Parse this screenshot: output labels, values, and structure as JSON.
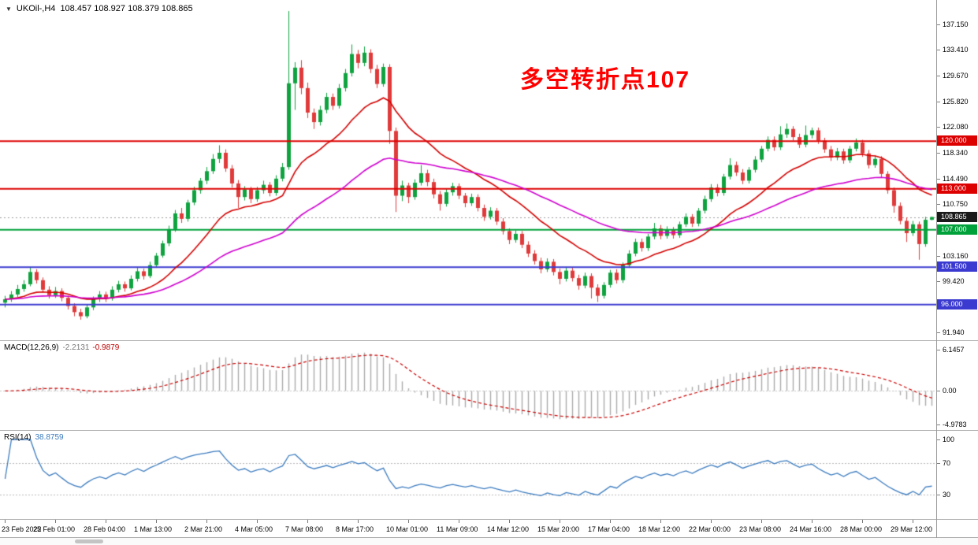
{
  "header": {
    "triangle_icon": "▼",
    "symbol": "UKOil-,H4",
    "ohlc_text": "108.457 108.927 108.379 108.865"
  },
  "annotation": {
    "text": "多空转折点107",
    "color": "#ff0000"
  },
  "colors": {
    "candle_up": "#0fa33f",
    "candle_down": "#e03a3a",
    "macd_hist": "#aaaaaa",
    "macd_signal": "#cc0000",
    "rsi_line": "#3b7bbf",
    "current_badge": "#1a1a1a"
  },
  "chart_data": {
    "type": "candlestick",
    "title": "UKOil-,H4",
    "price_at_top": 140.73,
    "price_at_bottom": 90.78,
    "current_price": 108.865,
    "price_axis_labels": [
      "137.150",
      "133.410",
      "129.670",
      "125.820",
      "122.080",
      "118.340",
      "114.490",
      "110.750",
      "103.160",
      "99.420",
      "91.940"
    ],
    "x_label_every": 8,
    "x_labels": [
      "23 Feb 2022",
      "25 Feb 01:00",
      "28 Feb 04:00",
      "1 Mar 13:00",
      "2 Mar 21:00",
      "4 Mar 05:00",
      "7 Mar 08:00",
      "8 Mar 17:00",
      "10 Mar 01:00",
      "11 Mar 09:00",
      "14 Mar 12:00",
      "15 Mar 20:00",
      "17 Mar 04:00",
      "18 Mar 12:00",
      "22 Mar 00:00",
      "23 Mar 08:00",
      "24 Mar 16:00",
      "28 Mar 00:00",
      "29 Mar 12:00"
    ],
    "levels": [
      {
        "price": 120.0,
        "label": "120.000",
        "color": "#dd0000"
      },
      {
        "price": 113.0,
        "label": "113.000",
        "color": "#dd0000"
      },
      {
        "price": 107.0,
        "label": "107.000",
        "color": "#00a13a"
      },
      {
        "price": 101.5,
        "label": "101.500",
        "color": "#3a3ad0"
      },
      {
        "price": 96.0,
        "label": "96.000",
        "color": "#3a3ad0"
      }
    ],
    "moving_averages": [
      {
        "name": "ma-fast-red",
        "period": 18,
        "color": "#d40000"
      },
      {
        "name": "ma-slow-magenta",
        "period": 48,
        "color": "#cf00cf"
      }
    ],
    "macd": {
      "label": "MACD(12,26,9)",
      "value_main": "-2.2131",
      "value_signal": "-0.9879",
      "fast": 12,
      "slow": 26,
      "signal_period": 9,
      "vmax": 7.4,
      "vmin": -5.8,
      "axis_labels": [
        "6.1457",
        "0.00",
        "-4.9783"
      ]
    },
    "rsi": {
      "label": "RSI(14)",
      "value": "38.8759",
      "period": 14,
      "levels": [
        70,
        30
      ],
      "axis_labels": [
        "100",
        "70",
        "30"
      ]
    },
    "candles": [
      [
        96.3,
        97.3,
        95.6,
        96.8
      ],
      [
        96.8,
        98.0,
        96.4,
        97.5
      ],
      [
        97.5,
        98.9,
        97.1,
        98.3
      ],
      [
        98.3,
        99.6,
        97.9,
        99.0
      ],
      [
        99.0,
        101.5,
        98.7,
        100.8
      ],
      [
        100.8,
        101.2,
        99.1,
        99.6
      ],
      [
        99.6,
        100.0,
        97.8,
        98.2
      ],
      [
        98.2,
        98.7,
        96.9,
        97.4
      ],
      [
        97.4,
        98.6,
        97.0,
        98.0
      ],
      [
        98.0,
        98.4,
        96.5,
        97.0
      ],
      [
        97.0,
        97.3,
        95.3,
        95.8
      ],
      [
        95.8,
        96.2,
        94.3,
        94.9
      ],
      [
        94.9,
        95.4,
        93.8,
        94.3
      ],
      [
        94.3,
        96.0,
        94.0,
        95.6
      ],
      [
        95.6,
        97.2,
        95.2,
        96.8
      ],
      [
        96.8,
        98.0,
        96.4,
        97.5
      ],
      [
        97.5,
        97.9,
        96.4,
        96.9
      ],
      [
        96.9,
        98.7,
        96.6,
        98.2
      ],
      [
        98.2,
        99.5,
        97.8,
        99.0
      ],
      [
        99.0,
        99.4,
        97.9,
        98.4
      ],
      [
        98.4,
        100.3,
        98.1,
        99.8
      ],
      [
        99.8,
        101.4,
        99.4,
        100.9
      ],
      [
        100.9,
        101.3,
        99.7,
        100.2
      ],
      [
        100.2,
        102.3,
        99.9,
        101.8
      ],
      [
        101.8,
        103.6,
        101.4,
        103.2
      ],
      [
        103.2,
        105.4,
        102.9,
        105.0
      ],
      [
        105.0,
        107.6,
        104.6,
        107.1
      ],
      [
        107.1,
        109.9,
        106.7,
        109.4
      ],
      [
        109.4,
        110.2,
        108.0,
        108.6
      ],
      [
        108.6,
        111.4,
        108.2,
        111.0
      ],
      [
        111.0,
        113.3,
        110.6,
        112.8
      ],
      [
        112.8,
        114.6,
        112.3,
        114.2
      ],
      [
        114.2,
        116.2,
        113.7,
        115.6
      ],
      [
        115.6,
        118.1,
        115.2,
        117.4
      ],
      [
        117.4,
        119.4,
        116.8,
        118.3
      ],
      [
        118.3,
        118.8,
        115.5,
        116.0
      ],
      [
        116.0,
        116.5,
        113.2,
        113.8
      ],
      [
        113.8,
        114.3,
        110.2,
        111.8
      ],
      [
        111.8,
        113.4,
        111.3,
        112.9
      ],
      [
        112.9,
        113.3,
        110.9,
        111.5
      ],
      [
        111.5,
        113.3,
        111.1,
        112.8
      ],
      [
        112.8,
        114.2,
        112.3,
        113.6
      ],
      [
        113.6,
        114.0,
        111.9,
        112.4
      ],
      [
        112.4,
        115.0,
        112.0,
        114.5
      ],
      [
        114.5,
        116.8,
        114.1,
        116.2
      ],
      [
        116.2,
        139.1,
        115.8,
        128.5
      ],
      [
        128.5,
        131.6,
        124.6,
        130.8
      ],
      [
        130.8,
        131.9,
        126.9,
        127.8
      ],
      [
        127.8,
        128.6,
        123.4,
        124.2
      ],
      [
        124.2,
        124.8,
        121.8,
        122.8
      ],
      [
        122.8,
        125.2,
        122.3,
        124.6
      ],
      [
        124.6,
        127.1,
        124.1,
        126.5
      ],
      [
        126.5,
        127.0,
        124.6,
        125.2
      ],
      [
        125.2,
        128.4,
        124.8,
        127.8
      ],
      [
        127.8,
        130.6,
        127.3,
        130.0
      ],
      [
        130.0,
        134.2,
        129.5,
        132.8
      ],
      [
        132.8,
        133.4,
        130.7,
        131.5
      ],
      [
        131.5,
        133.9,
        131.0,
        133.0
      ],
      [
        133.0,
        133.5,
        130.0,
        130.6
      ],
      [
        130.6,
        131.2,
        127.8,
        128.4
      ],
      [
        128.4,
        131.4,
        128.0,
        130.9
      ],
      [
        130.9,
        131.3,
        119.6,
        121.5
      ],
      [
        121.5,
        122.0,
        109.6,
        112.0
      ],
      [
        112.0,
        114.2,
        111.2,
        113.5
      ],
      [
        113.5,
        113.9,
        110.9,
        111.8
      ],
      [
        111.8,
        114.4,
        111.4,
        113.9
      ],
      [
        113.9,
        116.5,
        113.5,
        115.3
      ],
      [
        115.3,
        115.8,
        113.4,
        114.0
      ],
      [
        114.0,
        114.5,
        111.6,
        112.2
      ],
      [
        112.2,
        112.7,
        109.8,
        110.8
      ],
      [
        110.8,
        113.0,
        110.4,
        112.5
      ],
      [
        112.5,
        113.9,
        112.0,
        113.4
      ],
      [
        113.4,
        113.8,
        111.5,
        112.0
      ],
      [
        112.0,
        112.4,
        110.3,
        110.9
      ],
      [
        110.9,
        112.3,
        110.5,
        111.8
      ],
      [
        111.8,
        112.2,
        109.7,
        110.2
      ],
      [
        110.2,
        110.7,
        108.3,
        108.9
      ],
      [
        108.9,
        110.3,
        108.5,
        109.8
      ],
      [
        109.8,
        110.2,
        107.7,
        108.2
      ],
      [
        108.2,
        108.7,
        106.3,
        106.8
      ],
      [
        106.8,
        107.2,
        104.9,
        105.5
      ],
      [
        105.5,
        106.9,
        105.1,
        106.4
      ],
      [
        106.4,
        106.8,
        104.3,
        104.8
      ],
      [
        104.8,
        105.3,
        103.0,
        103.5
      ],
      [
        103.5,
        104.0,
        101.9,
        102.4
      ],
      [
        102.4,
        102.9,
        100.6,
        101.2
      ],
      [
        101.2,
        102.8,
        100.8,
        102.3
      ],
      [
        102.3,
        102.7,
        100.3,
        100.8
      ],
      [
        100.8,
        101.3,
        99.0,
        99.8
      ],
      [
        99.8,
        101.5,
        99.4,
        101.0
      ],
      [
        101.0,
        101.4,
        99.4,
        99.9
      ],
      [
        99.9,
        100.4,
        98.2,
        98.8
      ],
      [
        98.8,
        100.7,
        98.4,
        100.2
      ],
      [
        100.2,
        100.6,
        96.9,
        98.5
      ],
      [
        98.5,
        99.0,
        96.4,
        97.3
      ],
      [
        97.3,
        99.3,
        96.9,
        98.9
      ],
      [
        98.9,
        101.1,
        98.5,
        100.7
      ],
      [
        100.7,
        101.2,
        99.1,
        99.6
      ],
      [
        99.6,
        102.2,
        99.2,
        101.8
      ],
      [
        101.8,
        104.0,
        101.4,
        103.5
      ],
      [
        103.5,
        105.7,
        103.1,
        105.2
      ],
      [
        105.2,
        105.7,
        103.8,
        104.3
      ],
      [
        104.3,
        106.4,
        103.9,
        106.0
      ],
      [
        106.0,
        108.0,
        105.6,
        107.2
      ],
      [
        107.2,
        107.7,
        105.6,
        106.1
      ],
      [
        106.1,
        107.5,
        105.7,
        107.0
      ],
      [
        107.0,
        107.4,
        105.7,
        106.2
      ],
      [
        106.2,
        108.2,
        105.8,
        107.8
      ],
      [
        107.8,
        109.4,
        107.4,
        108.9
      ],
      [
        108.9,
        109.3,
        107.4,
        107.9
      ],
      [
        107.9,
        110.2,
        107.5,
        109.8
      ],
      [
        109.8,
        112.0,
        109.4,
        111.5
      ],
      [
        111.5,
        113.7,
        111.1,
        113.2
      ],
      [
        113.2,
        113.7,
        111.9,
        112.4
      ],
      [
        112.4,
        115.2,
        112.0,
        114.8
      ],
      [
        114.8,
        117.5,
        114.4,
        116.5
      ],
      [
        116.5,
        117.0,
        114.9,
        115.4
      ],
      [
        115.4,
        115.9,
        113.7,
        114.2
      ],
      [
        114.2,
        116.2,
        113.8,
        115.8
      ],
      [
        115.8,
        117.8,
        115.4,
        117.3
      ],
      [
        117.3,
        119.3,
        116.9,
        118.9
      ],
      [
        118.9,
        120.7,
        118.5,
        120.2
      ],
      [
        120.2,
        120.7,
        118.6,
        119.1
      ],
      [
        119.1,
        122.2,
        118.7,
        121.0
      ],
      [
        121.0,
        122.6,
        120.5,
        121.8
      ],
      [
        121.8,
        122.2,
        120.1,
        120.6
      ],
      [
        120.6,
        121.1,
        119.0,
        119.5
      ],
      [
        119.5,
        122.3,
        119.1,
        120.9
      ],
      [
        120.9,
        122.0,
        120.4,
        121.6
      ],
      [
        121.6,
        122.0,
        119.6,
        120.1
      ],
      [
        120.1,
        120.5,
        118.3,
        118.8
      ],
      [
        118.8,
        119.3,
        117.1,
        117.6
      ],
      [
        117.6,
        119.0,
        117.2,
        118.5
      ],
      [
        118.5,
        118.9,
        116.7,
        117.2
      ],
      [
        117.2,
        119.3,
        116.8,
        118.9
      ],
      [
        118.9,
        120.4,
        118.5,
        119.8
      ],
      [
        119.8,
        120.2,
        117.7,
        118.2
      ],
      [
        118.2,
        118.7,
        116.0,
        116.5
      ],
      [
        116.5,
        117.9,
        116.1,
        117.4
      ],
      [
        117.4,
        117.8,
        114.7,
        115.2
      ],
      [
        115.2,
        115.6,
        112.3,
        112.8
      ],
      [
        112.8,
        113.2,
        109.5,
        110.5
      ],
      [
        110.5,
        111.0,
        107.8,
        108.3
      ],
      [
        108.3,
        108.8,
        105.2,
        106.5
      ],
      [
        106.5,
        108.3,
        106.1,
        107.8
      ],
      [
        107.8,
        108.2,
        102.6,
        104.9
      ],
      [
        104.9,
        108.9,
        104.5,
        108.46
      ],
      [
        108.46,
        108.93,
        108.38,
        108.87
      ]
    ]
  }
}
